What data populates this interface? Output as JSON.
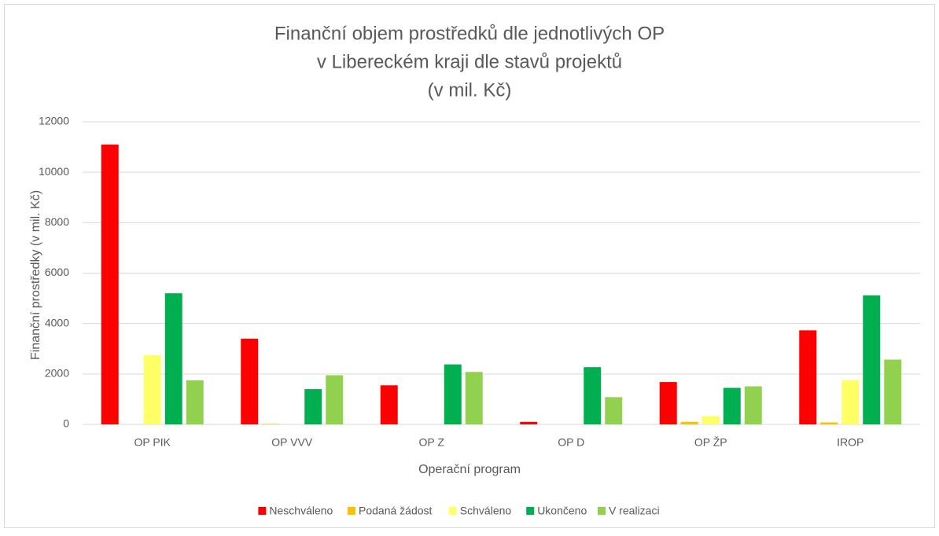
{
  "chart_data": {
    "type": "bar",
    "title": [
      "Finanční objem prostředků dle jednotlivých OP",
      "v Libereckém kraji dle stavů projektů",
      "(v mil. Kč)"
    ],
    "xlabel": "Operační program",
    "ylabel": "Finanční prostředky (v mil. Kč)",
    "categories": [
      "OP PIK",
      "OP VVV",
      "OP Z",
      "OP D",
      "OP ŽP",
      "IROP"
    ],
    "series": [
      {
        "name": "Neschváleno",
        "color": "#ff0000",
        "values": [
          11100,
          3400,
          1550,
          100,
          1680,
          3730
        ]
      },
      {
        "name": "Podaná žádost",
        "color": "#ffc000",
        "values": [
          0,
          20,
          0,
          0,
          100,
          80
        ]
      },
      {
        "name": "Schváleno",
        "color": "#ffff66",
        "values": [
          2750,
          0,
          0,
          0,
          330,
          1760
        ]
      },
      {
        "name": "Ukončeno",
        "color": "#00b050",
        "values": [
          5200,
          1400,
          2380,
          2270,
          1450,
          5120
        ]
      },
      {
        "name": "V realizaci",
        "color": "#92d050",
        "values": [
          1750,
          1950,
          2080,
          1080,
          1510,
          2570
        ]
      }
    ],
    "ylim": [
      0,
      12000
    ],
    "yticks": [
      0,
      2000,
      4000,
      6000,
      8000,
      10000,
      12000
    ],
    "grid": true,
    "legend": "bottom"
  }
}
